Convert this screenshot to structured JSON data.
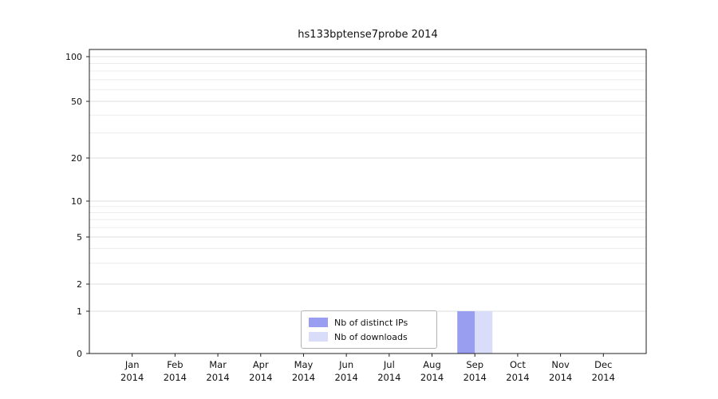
{
  "chart_data": {
    "type": "bar",
    "title": "hs133bptense7probe 2014",
    "categories": [
      "Jan 2014",
      "Feb 2014",
      "Mar 2014",
      "Apr 2014",
      "May 2014",
      "Jun 2014",
      "Jul 2014",
      "Aug 2014",
      "Sep 2014",
      "Oct 2014",
      "Nov 2014",
      "Dec 2014"
    ],
    "series": [
      {
        "name": "Nb of distinct IPs",
        "color": "#9a9ef0",
        "values": [
          0,
          0,
          0,
          0,
          0,
          0,
          0,
          0,
          1,
          0,
          0,
          0
        ]
      },
      {
        "name": "Nb of downloads",
        "color": "#d9ddfa",
        "values": [
          0,
          0,
          0,
          0,
          0,
          0,
          0,
          0,
          1,
          0,
          0,
          0
        ]
      }
    ],
    "xlabel": "",
    "ylabel": "",
    "yticks": [
      0,
      1,
      2,
      5,
      10,
      20,
      50,
      100
    ],
    "minor_yticks": [
      3,
      4,
      6,
      7,
      8,
      9,
      30,
      40,
      60,
      70,
      80,
      90
    ],
    "ylim": [
      0,
      100
    ],
    "yscale": "log-like",
    "grid": true,
    "legend_position": "inside-bottom-center",
    "colors": {
      "axis": "#222222",
      "major_grid": "#dddddd",
      "minor_grid": "#ececec",
      "text": "#111111",
      "background": "#ffffff"
    }
  }
}
